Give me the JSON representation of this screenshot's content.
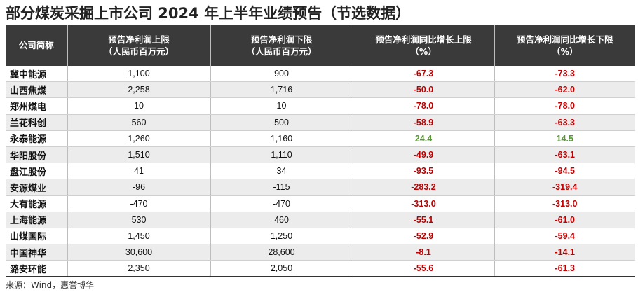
{
  "title": "部分煤炭采掘上市公司 2024 年上半年业绩预告（节选数据）",
  "table": {
    "headers": [
      {
        "line1": "公司简称",
        "line2": ""
      },
      {
        "line1": "预告净利润上限",
        "line2": "（人民币百万元）"
      },
      {
        "line1": "预告净利润下限",
        "line2": "（人民币百万元）"
      },
      {
        "line1": "预告净利润同比增长上限",
        "line2": "（%）"
      },
      {
        "line1": "预告净利润同比增长下限",
        "line2": "（%）"
      }
    ],
    "rows": [
      {
        "name": "冀中能源",
        "upper": "1,100",
        "lower": "900",
        "growth_upper": "-67.3",
        "growth_lower": "-73.3"
      },
      {
        "name": "山西焦煤",
        "upper": "2,258",
        "lower": "1,716",
        "growth_upper": "-50.0",
        "growth_lower": "-62.0"
      },
      {
        "name": "郑州煤电",
        "upper": "10",
        "lower": "10",
        "growth_upper": "-78.0",
        "growth_lower": "-78.0"
      },
      {
        "name": "兰花科创",
        "upper": "560",
        "lower": "500",
        "growth_upper": "-58.9",
        "growth_lower": "-63.3"
      },
      {
        "name": "永泰能源",
        "upper": "1,260",
        "lower": "1,160",
        "growth_upper": "24.4",
        "growth_lower": "14.5"
      },
      {
        "name": "华阳股份",
        "upper": "1,510",
        "lower": "1,110",
        "growth_upper": "-49.9",
        "growth_lower": "-63.1"
      },
      {
        "name": "盘江股份",
        "upper": "41",
        "lower": "34",
        "growth_upper": "-93.5",
        "growth_lower": "-94.5"
      },
      {
        "name": "安源煤业",
        "upper": "-96",
        "lower": "-115",
        "growth_upper": "-283.2",
        "growth_lower": "-319.4"
      },
      {
        "name": "大有能源",
        "upper": "-470",
        "lower": "-470",
        "growth_upper": "-313.0",
        "growth_lower": "-313.0"
      },
      {
        "name": "上海能源",
        "upper": "530",
        "lower": "460",
        "growth_upper": "-55.1",
        "growth_lower": "-61.0"
      },
      {
        "name": "山煤国际",
        "upper": "1,450",
        "lower": "1,250",
        "growth_upper": "-52.9",
        "growth_lower": "-59.4"
      },
      {
        "name": "中国神华",
        "upper": "30,600",
        "lower": "28,600",
        "growth_upper": "-8.1",
        "growth_lower": "-14.1"
      },
      {
        "name": "潞安环能",
        "upper": "2,350",
        "lower": "2,050",
        "growth_upper": "-55.6",
        "growth_lower": "-61.3"
      }
    ]
  },
  "colors": {
    "header_bg": "#3a3a3a",
    "negative": "#c00000",
    "positive": "#549a2b",
    "alt_row": "#ececec"
  },
  "source": "来源：Wind，惠誉博华"
}
